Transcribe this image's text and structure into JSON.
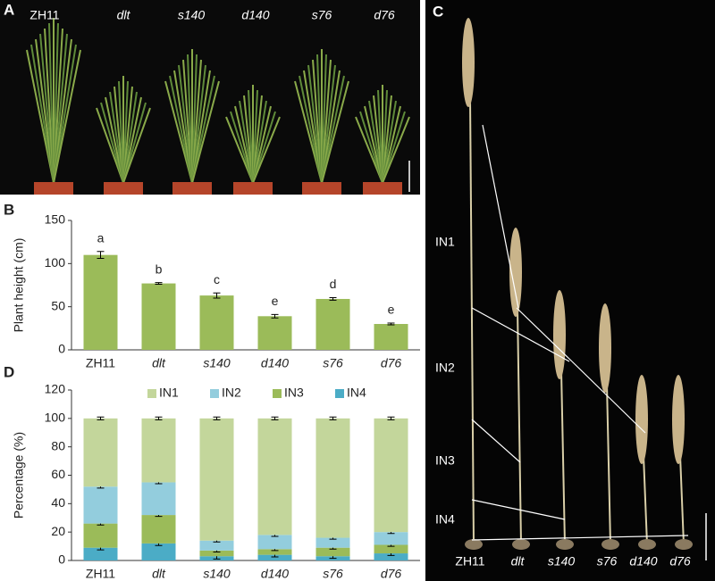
{
  "photo_a": {
    "letter": "A",
    "labels": [
      "ZH11",
      "dlt",
      "s140",
      "d140",
      "s76",
      "d76"
    ]
  },
  "photo_c": {
    "letter": "C",
    "segment_labels": [
      "IN1",
      "IN2",
      "IN3",
      "IN4"
    ],
    "labels": [
      "ZH11",
      "dlt",
      "s140",
      "s76",
      "d140",
      "d76"
    ]
  },
  "chart_data": [
    {
      "type": "bar",
      "label": "B",
      "y_label": "Plant  height (cm)",
      "categories": [
        "ZH11",
        "dlt",
        "s140",
        "d140",
        "s76",
        "d76"
      ],
      "values": [
        110,
        77,
        63,
        39,
        59,
        30
      ],
      "errors": [
        4,
        1,
        3,
        2,
        1.5,
        1
      ],
      "annotations": [
        "a",
        "b",
        "c",
        "e",
        "d",
        "e"
      ],
      "color": "#9bbb59",
      "ylim": [
        0,
        150
      ],
      "yticks": [
        0,
        50,
        100,
        150
      ]
    },
    {
      "type": "stacked_bar",
      "label": "D",
      "y_label": "Percentage (%)",
      "categories": [
        "ZH11",
        "dlt",
        "s140",
        "d140",
        "s76",
        "d76"
      ],
      "series": [
        {
          "name": "IN1",
          "color": "#c3d69b",
          "values": [
            48,
            45,
            86,
            82,
            84,
            80
          ],
          "errors": [
            1,
            1,
            1,
            1,
            1,
            1
          ]
        },
        {
          "name": "IN2",
          "color": "#93cddd",
          "values": [
            26,
            23,
            7,
            10,
            7,
            9
          ],
          "errors": [
            1,
            1,
            1,
            1,
            1,
            1
          ]
        },
        {
          "name": "IN3",
          "color": "#9bbb59",
          "values": [
            17,
            20,
            4,
            4,
            6,
            6
          ],
          "errors": [
            1,
            1,
            1,
            1,
            1,
            1
          ]
        },
        {
          "name": "IN4",
          "color": "#4bacc6",
          "values": [
            9,
            12,
            3,
            4,
            3,
            5
          ],
          "errors": [
            1.5,
            1.5,
            2,
            1.5,
            1.5,
            1.5
          ]
        }
      ],
      "ylim": [
        0,
        120
      ],
      "yticks": [
        0,
        20,
        40,
        60,
        80,
        100,
        120
      ]
    }
  ]
}
